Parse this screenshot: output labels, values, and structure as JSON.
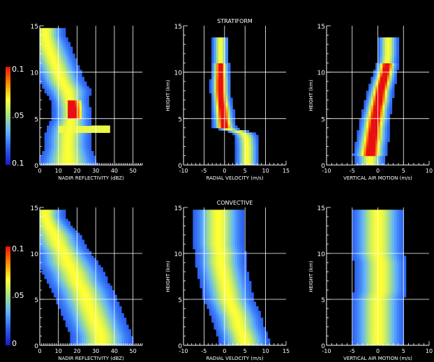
{
  "colors": {
    "background": "#000000",
    "axes": "#ffffff",
    "text": "#ffffff",
    "colormap": [
      "#1a1acc",
      "#2a60f0",
      "#5fb0ff",
      "#a6e08a",
      "#ffff33",
      "#ff8a00",
      "#e81010"
    ]
  },
  "colorbars": [
    {
      "tick_labels": [
        "0.1",
        ".05",
        "0.1"
      ]
    },
    {
      "tick_labels": [
        "0.1",
        ".05",
        "0"
      ]
    }
  ],
  "chart_data": [
    {
      "type": "heatmap",
      "row": 0,
      "col": 0,
      "title": "",
      "xlabel": "NADIR REFLECTIVITY (dBZ)",
      "ylabel": "",
      "xlim": [
        0,
        55
      ],
      "ylim": [
        0,
        15
      ],
      "xticks": [
        0,
        10,
        20,
        30,
        40,
        50
      ],
      "yticks": [
        0,
        5,
        10,
        15
      ],
      "ridge": [
        [
          0,
          15,
          8
        ],
        [
          1,
          15,
          7
        ],
        [
          2,
          15,
          6
        ],
        [
          3,
          15,
          6
        ],
        [
          4,
          16,
          6
        ],
        [
          5,
          17,
          5
        ],
        [
          6,
          17,
          5
        ],
        [
          7,
          16,
          5
        ],
        [
          8,
          15,
          6
        ],
        [
          9,
          12,
          6
        ],
        [
          10,
          10,
          6
        ],
        [
          11,
          8,
          6
        ],
        [
          12,
          6,
          6
        ],
        [
          13,
          4,
          6
        ],
        [
          14,
          3,
          5
        ]
      ],
      "spike": {
        "y": 3.8,
        "x_from": 10,
        "x_to": 38
      },
      "peak": [
        5,
        7
      ],
      "peak_x": [
        15,
        22
      ]
    },
    {
      "type": "heatmap",
      "row": 0,
      "col": 1,
      "title": "STRATIFORM",
      "xlabel": "RADIAL VELOCITY (m/s)",
      "ylabel": "HEIGHT (km)",
      "xlim": [
        -10,
        15
      ],
      "ylim": [
        0,
        15
      ],
      "xticks": [
        -10,
        -5,
        0,
        5,
        10,
        15
      ],
      "yticks": [
        0,
        5,
        10,
        15
      ],
      "ridge": [
        [
          0,
          5.5,
          1.4
        ],
        [
          1,
          5.5,
          1.4
        ],
        [
          2,
          5.5,
          1.4
        ],
        [
          3,
          5.3,
          1.4
        ],
        [
          3.5,
          4.5,
          1.4
        ],
        [
          4,
          0,
          1.3
        ],
        [
          5,
          -0.3,
          1.2
        ],
        [
          6,
          -0.5,
          1.2
        ],
        [
          7,
          -0.8,
          1.1
        ],
        [
          8,
          -1,
          1.1
        ],
        [
          9,
          -1,
          1.1
        ],
        [
          10,
          -1,
          1
        ],
        [
          11,
          -1,
          1
        ],
        [
          12,
          -1,
          1
        ],
        [
          13,
          -1,
          1
        ]
      ],
      "peak": [
        4,
        11
      ]
    },
    {
      "type": "heatmap",
      "row": 0,
      "col": 2,
      "title": "",
      "xlabel": "VERTICAL AIR MOTION (m/s)",
      "ylabel": "HEIGHT (km)",
      "xlim": [
        -10,
        10
      ],
      "ylim": [
        0,
        15
      ],
      "xticks": [
        -10,
        -5,
        0,
        5,
        10
      ],
      "yticks": [
        0,
        5,
        10,
        15
      ],
      "ridge": [
        [
          0,
          -1.5,
          1.5
        ],
        [
          1,
          -1.5,
          1.5
        ],
        [
          2,
          -1.3,
          1.4
        ],
        [
          3,
          -1,
          1.4
        ],
        [
          4,
          -0.8,
          1.3
        ],
        [
          5,
          -0.5,
          1.3
        ],
        [
          6,
          -0.2,
          1.2
        ],
        [
          7,
          0.2,
          1.2
        ],
        [
          8,
          0.5,
          1.1
        ],
        [
          9,
          1,
          1.1
        ],
        [
          10,
          1.5,
          1
        ],
        [
          11,
          1.8,
          1
        ],
        [
          12,
          2,
          1
        ],
        [
          13,
          2,
          1
        ]
      ],
      "peak": [
        1,
        11
      ]
    },
    {
      "type": "heatmap",
      "row": 1,
      "col": 0,
      "title": "",
      "xlabel": "NADIR REFLECTIVITY (dBZ)",
      "ylabel": "",
      "xlim": [
        0,
        55
      ],
      "ylim": [
        0,
        15
      ],
      "xticks": [
        0,
        10,
        20,
        30,
        40,
        50
      ],
      "yticks": [
        0,
        5,
        10,
        15
      ],
      "ridge": [
        [
          0,
          33,
          8
        ],
        [
          1,
          33,
          8
        ],
        [
          2,
          31,
          8
        ],
        [
          3,
          29,
          8
        ],
        [
          4,
          27,
          8
        ],
        [
          5,
          25,
          8
        ],
        [
          6,
          23,
          8
        ],
        [
          7,
          20,
          8
        ],
        [
          8,
          18,
          8
        ],
        [
          9,
          15,
          8
        ],
        [
          10,
          13,
          7
        ],
        [
          11,
          10,
          7
        ],
        [
          12,
          8,
          7
        ],
        [
          13,
          5,
          6
        ],
        [
          14,
          3,
          5
        ]
      ],
      "peak": [
        0,
        0
      ]
    },
    {
      "type": "heatmap",
      "row": 1,
      "col": 1,
      "title": "CONVECTIVE",
      "xlabel": "RADIAL VELOCITY (m/s)",
      "ylabel": "HEIGHT (km)",
      "xlim": [
        -10,
        15
      ],
      "ylim": [
        0,
        15
      ],
      "xticks": [
        -10,
        -5,
        0,
        5,
        10,
        15
      ],
      "yticks": [
        0,
        5,
        10,
        15
      ],
      "ridge": [
        [
          0,
          5,
          3
        ],
        [
          1,
          4.5,
          3
        ],
        [
          2,
          3.5,
          3
        ],
        [
          3,
          3,
          3
        ],
        [
          4,
          2,
          3
        ],
        [
          5,
          1,
          3
        ],
        [
          6,
          0.5,
          3
        ],
        [
          7,
          0,
          3
        ],
        [
          8,
          -0.5,
          3
        ],
        [
          9,
          -1,
          3
        ],
        [
          10,
          -1,
          3
        ],
        [
          11,
          -1.5,
          3
        ],
        [
          12,
          -1.5,
          3
        ],
        [
          13,
          -1.5,
          3
        ],
        [
          14,
          -1.5,
          3
        ]
      ],
      "peak": [
        0,
        0
      ]
    },
    {
      "type": "heatmap",
      "row": 1,
      "col": 2,
      "title": "",
      "xlabel": "VERTICAL AIR MOTION (m/s)",
      "ylabel": "HEIGHT (km)",
      "xlim": [
        -10,
        10
      ],
      "ylim": [
        0,
        15
      ],
      "xticks": [
        -10,
        -5,
        0,
        5,
        10
      ],
      "yticks": [
        0,
        5,
        10,
        15
      ],
      "ridge": [
        [
          0,
          0,
          2.5
        ],
        [
          1,
          0,
          2.5
        ],
        [
          2,
          0,
          2.5
        ],
        [
          3,
          0,
          2.5
        ],
        [
          4,
          0,
          2.5
        ],
        [
          5,
          0,
          2.5
        ],
        [
          6,
          0.5,
          2.5
        ],
        [
          7,
          0.5,
          2.5
        ],
        [
          8,
          0.5,
          2.5
        ],
        [
          9,
          0.5,
          2.5
        ],
        [
          10,
          0,
          2.5
        ],
        [
          11,
          0,
          2.5
        ],
        [
          12,
          0,
          2.5
        ],
        [
          13,
          0,
          2.5
        ],
        [
          14,
          0,
          2.5
        ]
      ],
      "peak": [
        0,
        0
      ]
    }
  ]
}
